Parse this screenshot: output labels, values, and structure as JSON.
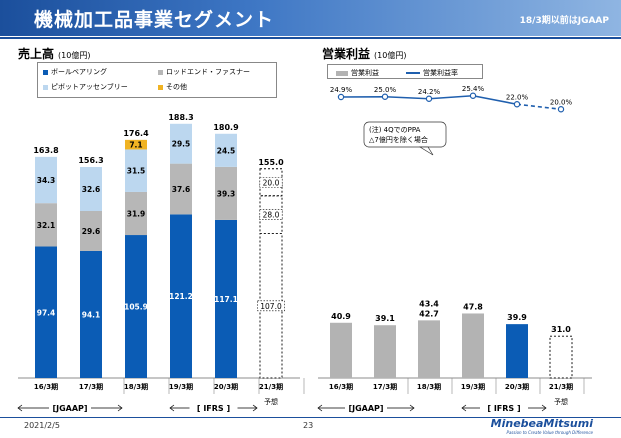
{
  "header": {
    "title": "機械加工品事業セグメント",
    "note": "18/3期以前はJGAAP"
  },
  "footer": {
    "date": "2021/2/5",
    "page": "23",
    "brand": "MinebeaMitsumi",
    "tagline": "Passion to Create Value through Difference"
  },
  "colors": {
    "ball_bearing": "#0b5cb5",
    "rod_end": "#b7b7b7",
    "pivot": "#bcd7ef",
    "other": "#f0b323",
    "profit_bar": "#b3b3b3",
    "profit_ifrs": "#0b5cb5",
    "margin_line": "#1f5fae"
  },
  "chart_data": [
    {
      "type": "bar",
      "stacked": true,
      "title": "売上高",
      "unit": "(10億円)",
      "categories": [
        "16/3期",
        "17/3期",
        "18/3期",
        "19/3期",
        "20/3期",
        "21/3期"
      ],
      "forecast_label": "予想",
      "series": [
        {
          "name": "ボールベアリング",
          "values": [
            97.4,
            94.1,
            105.9,
            121.2,
            117.1,
            107.0
          ]
        },
        {
          "name": "ロッドエンド・ファスナー",
          "values": [
            32.1,
            29.6,
            31.9,
            37.6,
            39.3,
            28.0
          ]
        },
        {
          "name": "ピボットアッセンブリー",
          "values": [
            34.3,
            32.6,
            31.5,
            29.5,
            24.5,
            20.0
          ]
        },
        {
          "name": "その他",
          "values": [
            0,
            0,
            7.1,
            0,
            0,
            0
          ]
        }
      ],
      "totals": [
        163.8,
        156.3,
        176.4,
        188.3,
        180.9,
        155.0
      ],
      "segment_labels": [
        [
          "97.4",
          "32.1",
          "34.3",
          null
        ],
        [
          "94.1",
          "29.6",
          "32.6",
          null
        ],
        [
          "105.9",
          "31.9",
          "31.5",
          "7.1"
        ],
        [
          "121.2",
          "37.6",
          "29.5",
          null
        ],
        [
          "117.1",
          "39.3",
          "24.5",
          null
        ],
        [
          "107.0",
          "28.0",
          "20.0",
          null
        ]
      ],
      "total_labels": [
        "163.8",
        "156.3",
        "176.4",
        "188.3",
        "180.9",
        "155.0"
      ],
      "ylim": [
        0,
        200
      ],
      "standard_groups": [
        {
          "label": "[JGAAP]",
          "from": 0,
          "to": 2
        },
        {
          "label": "[ IFRS ]",
          "from": 3,
          "to": 5
        }
      ]
    },
    {
      "type": "bar+line",
      "title": "営業利益",
      "unit": "(10億円)",
      "categories": [
        "16/3期",
        "17/3期",
        "18/3期",
        "19/3期",
        "20/3期",
        "21/3期"
      ],
      "forecast_label": "予想",
      "legend": {
        "bar": "営業利益",
        "line": "営業利益率"
      },
      "profit": [
        40.9,
        39.1,
        42.7,
        47.8,
        39.9,
        31.0
      ],
      "profit_labels": [
        "40.9",
        "39.1",
        "42.7",
        "47.8",
        "39.9",
        "31.0"
      ],
      "adjusted_profit_18": 43.4,
      "adjusted_label": "43.4",
      "margin_pct": [
        24.9,
        25.0,
        24.2,
        25.4,
        22.0,
        20.0
      ],
      "margin_labels": [
        "24.9%",
        "25.0%",
        "24.2%",
        "25.4%",
        "22.0%",
        "20.0%"
      ],
      "annotation": [
        "(注) 4QでのPPA",
        "△7億円を除く場合"
      ],
      "ylim": [
        0,
        200
      ],
      "standard_groups": [
        {
          "label": "[JGAAP]",
          "from": 0,
          "to": 2
        },
        {
          "label": "[ IFRS ]",
          "from": 3,
          "to": 5
        }
      ]
    }
  ]
}
